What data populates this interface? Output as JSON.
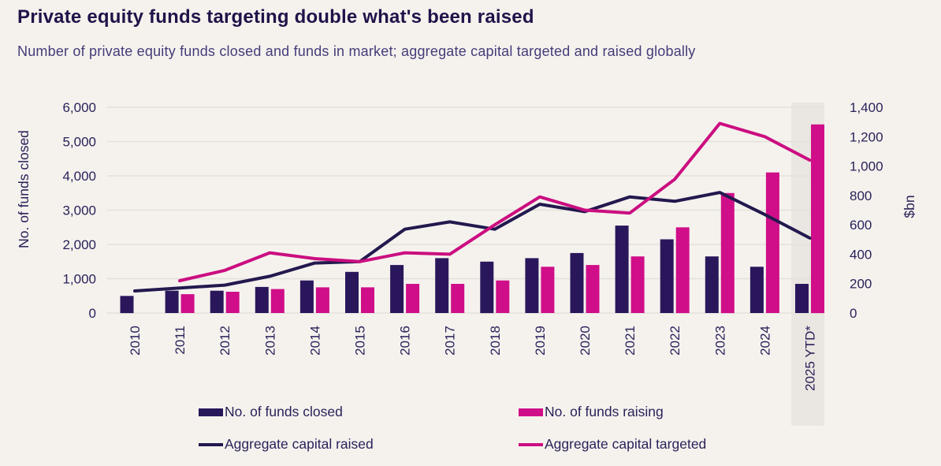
{
  "header": {
    "title": "Private equity funds targeting double what's been raised",
    "subtitle": "Number of private equity funds closed and funds in market; aggregate capital targeted and raised globally"
  },
  "colors": {
    "background": "#F5F2EE",
    "highlight_band": "#EAE6E1",
    "gridline": "#E4E0DA",
    "axis_text": "#2B2159",
    "funds_closed_bar": "#2A175B",
    "funds_raising_bar": "#D00E89",
    "capital_raised_line": "#23194E",
    "capital_targeted_line": "#CB0E80"
  },
  "chart_data": {
    "type": "combo-bar-line",
    "title": "Private equity funds targeting double what's been raised",
    "subtitle": "Number of private equity funds closed and funds in market; aggregate capital targeted and raised globally",
    "categories": [
      "2010",
      "2011",
      "2012",
      "2013",
      "2014",
      "2015",
      "2016",
      "2017",
      "2018",
      "2019",
      "2020",
      "2021",
      "2022",
      "2023",
      "2024",
      "2025 YTD*"
    ],
    "series": [
      {
        "name": "No. of funds closed",
        "kind": "bar",
        "axis": "left",
        "color": "#2A175B",
        "values": [
          500,
          650,
          650,
          760,
          950,
          1200,
          1400,
          1600,
          1500,
          1600,
          1750,
          2550,
          2150,
          1650,
          1350,
          850
        ]
      },
      {
        "name": "No. of funds raising",
        "kind": "bar",
        "axis": "left",
        "color": "#D00E89",
        "values": [
          null,
          550,
          620,
          700,
          750,
          750,
          850,
          850,
          950,
          1350,
          1400,
          1650,
          2500,
          3500,
          4100,
          5500
        ]
      },
      {
        "name": "Aggregate capital raised",
        "kind": "line",
        "axis": "right",
        "color": "#23194E",
        "values": [
          150,
          170,
          190,
          250,
          340,
          350,
          570,
          620,
          570,
          740,
          690,
          790,
          760,
          820,
          670,
          510
        ]
      },
      {
        "name": "Aggregate capital targeted",
        "kind": "line",
        "axis": "right",
        "color": "#CB0E80",
        "values": [
          null,
          220,
          290,
          410,
          370,
          350,
          410,
          400,
          600,
          790,
          700,
          680,
          910,
          1290,
          1200,
          1040
        ]
      }
    ],
    "left_axis": {
      "label": "No. of funds closed",
      "min": 0,
      "max": 6000,
      "step": 1000
    },
    "right_axis": {
      "label": "$bn",
      "min": 0,
      "max": 1400,
      "step": 200
    },
    "highlight_category": "2025 YTD*",
    "grid": true,
    "legend_position": "bottom"
  }
}
